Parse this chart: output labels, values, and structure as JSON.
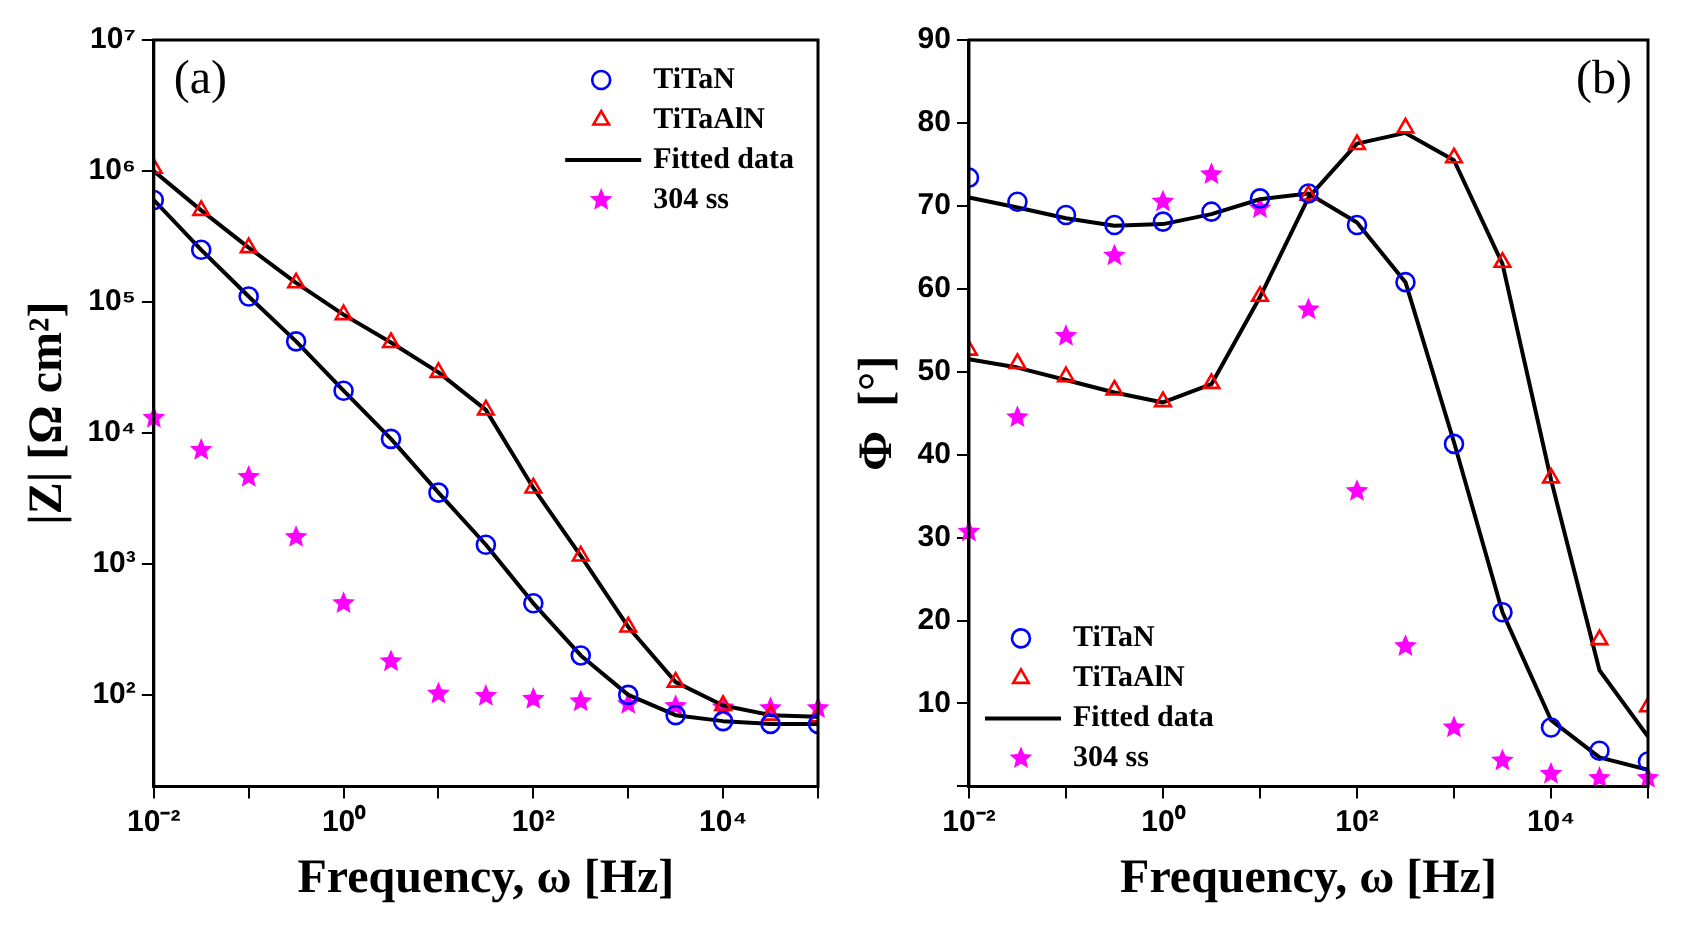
{
  "chart_data": [
    {
      "type": "scatter",
      "xlabel": "Frequency, ω [Hz]",
      "ylabel": "|Z| [Ω cm²]",
      "log": "xy",
      "grid": false,
      "legend": "top right",
      "annotations": [
        "(a)"
      ],
      "x": [
        0.01,
        0.0316,
        0.1,
        0.316,
        1,
        3.16,
        10,
        31.6,
        100,
        316,
        1000,
        3160,
        10000,
        31600,
        100000
      ],
      "xlim": [
        0.01,
        100000
      ],
      "xticks": [
        {
          "value": 0.01,
          "label": "10⁻²"
        },
        {
          "value": 0.1,
          "label": null
        },
        {
          "value": 1,
          "label": "10⁰"
        },
        {
          "value": 10,
          "label": null
        },
        {
          "value": 100,
          "label": "10²"
        },
        {
          "value": 1000,
          "label": null
        },
        {
          "value": 10000,
          "label": "10⁴"
        },
        {
          "value": 100000,
          "label": null
        }
      ],
      "ylim": [
        20,
        10000000
      ],
      "yticks": [
        {
          "value": 100,
          "label": "10²"
        },
        {
          "value": 1000,
          "label": "10³"
        },
        {
          "value": 10000,
          "label": "10⁴"
        },
        {
          "value": 100000,
          "label": "10⁵"
        },
        {
          "value": 1000000,
          "label": "10⁶"
        },
        {
          "value": 10000000,
          "label": "10⁷"
        }
      ],
      "series": [
        {
          "name": "TiTaN",
          "color": "#0000ff",
          "marker": "circle",
          "values": [
            600000,
            250000,
            110000,
            50000,
            21000,
            9000,
            3500,
            1400,
            500,
            200,
            100,
            70,
            63,
            60,
            60
          ]
        },
        {
          "name": "TiTaAlN",
          "color": "#ff0000",
          "marker": "triangle",
          "values": [
            1050000,
            500000,
            260000,
            140000,
            80000,
            49000,
            29000,
            15000,
            3800,
            1150,
            330,
            125,
            83,
            70,
            68
          ]
        },
        {
          "name": "Fitted data",
          "type": "line",
          "color": "#000000",
          "marker": "none",
          "values": [
            600000,
            250000,
            110000,
            50000,
            21000,
            9000,
            3500,
            1400,
            500,
            200,
            100,
            70,
            63,
            60,
            60
          ]
        },
        {
          "name": "304 ss",
          "color": "#ff00ff",
          "marker": "star",
          "values": [
            13000,
            7400,
            4600,
            1600,
            500,
            180,
            102,
            98,
            93,
            89,
            85,
            82,
            80,
            79,
            79
          ]
        },
        {
          "type": "line",
          "color": "#000000",
          "marker": "none",
          "values": [
            1000000,
            500000,
            260000,
            140000,
            80000,
            49000,
            29000,
            15000,
            3800,
            1150,
            330,
            125,
            83,
            70,
            68
          ]
        }
      ]
    },
    {
      "type": "scatter",
      "xlabel": "Frequency, ω [Hz]",
      "ylabel": "Φ  [°]",
      "log": "x",
      "grid": false,
      "legend": "bottom left",
      "annotations": [
        "(b)"
      ],
      "x": [
        0.01,
        0.0316,
        0.1,
        0.316,
        1,
        3.16,
        10,
        31.6,
        100,
        316,
        1000,
        3160,
        10000,
        31600,
        100000
      ],
      "xlim": [
        0.01,
        100000
      ],
      "xticks": [
        {
          "value": 0.01,
          "label": "10⁻²"
        },
        {
          "value": 0.1,
          "label": null
        },
        {
          "value": 1,
          "label": "10⁰"
        },
        {
          "value": 10,
          "label": null
        },
        {
          "value": 100,
          "label": "10²"
        },
        {
          "value": 1000,
          "label": null
        },
        {
          "value": 10000,
          "label": "10⁴"
        },
        {
          "value": 100000,
          "label": null
        }
      ],
      "ylim": [
        0,
        90
      ],
      "yticks": [
        {
          "value": 0,
          "label": null
        },
        10,
        20,
        30,
        40,
        50,
        60,
        70,
        80,
        90
      ],
      "series": [
        {
          "name": "TiTaN",
          "color": "#0000ff",
          "marker": "circle",
          "values": [
            73.4,
            70.5,
            68.9,
            67.7,
            68.1,
            69.3,
            70.9,
            71.5,
            67.7,
            60.8,
            41.3,
            21,
            7.1,
            4.3,
            3
          ]
        },
        {
          "name": "TiTaAlN",
          "color": "#ff0000",
          "marker": "triangle",
          "values": [
            52.6,
            51,
            49.4,
            47.8,
            46.4,
            48.6,
            59.1,
            71.3,
            77.4,
            79.4,
            75.8,
            63.2,
            37.2,
            17.7,
            9.6
          ]
        },
        {
          "name": "Fitted data",
          "type": "line",
          "color": "#000000",
          "marker": "none",
          "values": [
            71,
            69.8,
            68.5,
            67.6,
            67.8,
            69,
            70.8,
            71.5,
            68,
            60.8,
            41.5,
            21,
            8,
            3.5,
            2
          ]
        },
        {
          "name": "304 ss",
          "color": "#ff00ff",
          "marker": "star",
          "values": [
            30.7,
            44.5,
            54.3,
            64,
            70.5,
            73.8,
            69.7,
            57.5,
            35.6,
            16.9,
            7.1,
            3.1,
            1.5,
            1,
            1
          ]
        },
        {
          "type": "line",
          "color": "#000000",
          "marker": "none",
          "values": [
            51.5,
            50.5,
            49,
            47.5,
            46.3,
            48.5,
            59,
            71,
            77.5,
            78.8,
            75.5,
            63,
            37,
            14,
            6
          ]
        }
      ]
    }
  ]
}
